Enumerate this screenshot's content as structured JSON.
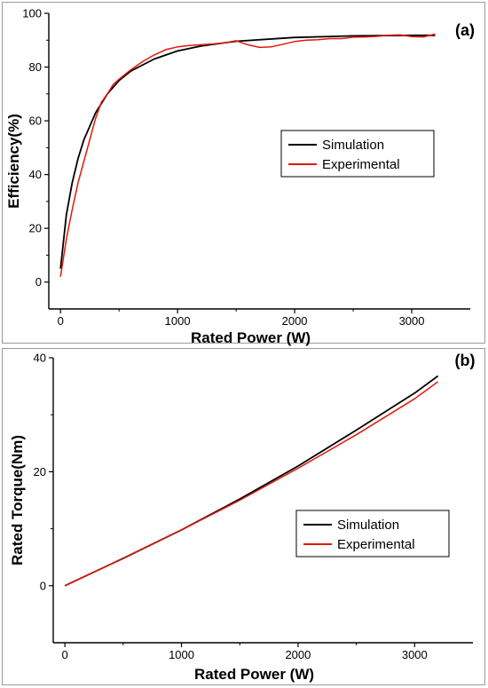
{
  "chart_data": [
    {
      "type": "line",
      "panel_label": "(a)",
      "xlabel": "Rated Power (W)",
      "ylabel": "Efficiency(%)",
      "xlim": [
        -100,
        3500
      ],
      "ylim": [
        -10,
        100
      ],
      "xticks": [
        0,
        1000,
        2000,
        3000
      ],
      "yticks": [
        0,
        20,
        40,
        60,
        80,
        100
      ],
      "legend_position": "center-right",
      "grid": false,
      "series": [
        {
          "name": "Simulation",
          "color": "#000000",
          "x": [
            0,
            50,
            100,
            150,
            200,
            300,
            400,
            500,
            600,
            800,
            1000,
            1200,
            1500,
            2000,
            2500,
            3000,
            3200
          ],
          "y": [
            5,
            25,
            37,
            46,
            53,
            63,
            70,
            75,
            78.5,
            83,
            86,
            87.8,
            89.6,
            91,
            91.6,
            91.8,
            91.8
          ]
        },
        {
          "name": "Experimental",
          "color": "#e3170a",
          "x": [
            0,
            50,
            100,
            150,
            200,
            250,
            300,
            350,
            400,
            450,
            500,
            600,
            700,
            800,
            900,
            1000,
            1100,
            1200,
            1300,
            1400,
            1500,
            1600,
            1700,
            1800,
            1900,
            2000,
            2100,
            2200,
            2300,
            2400,
            2500,
            2600,
            2700,
            2800,
            2900,
            3000,
            3100,
            3200
          ],
          "y": [
            2,
            16,
            27,
            37,
            45,
            53,
            61,
            67,
            70,
            73.5,
            75.5,
            79,
            82,
            84.5,
            86.5,
            87.5,
            88,
            88.3,
            88.6,
            89,
            89.8,
            88.3,
            87.3,
            87.5,
            88.5,
            89.5,
            90,
            90.2,
            90.6,
            90.6,
            91.1,
            91.2,
            91.4,
            91.8,
            92,
            91.3,
            91.2,
            92.3
          ]
        }
      ]
    },
    {
      "type": "line",
      "panel_label": "(b)",
      "xlabel": "Rated Power (W)",
      "ylabel": "Rated Torque(Nm)",
      "xlim": [
        -100,
        3500
      ],
      "ylim": [
        -10,
        40
      ],
      "xticks": [
        0,
        1000,
        2000,
        3000
      ],
      "yticks": [
        0,
        20,
        40
      ],
      "legend_position": "center-right",
      "grid": false,
      "series": [
        {
          "name": "Simulation",
          "color": "#000000",
          "x": [
            0,
            500,
            1000,
            1500,
            2000,
            2500,
            3000,
            3200
          ],
          "y": [
            0,
            4.8,
            9.8,
            15.2,
            21,
            27.3,
            33.8,
            36.8
          ]
        },
        {
          "name": "Experimental",
          "color": "#e3170a",
          "x": [
            0,
            500,
            1000,
            1500,
            2000,
            2500,
            3000,
            3200
          ],
          "y": [
            0,
            4.8,
            9.8,
            15.0,
            20.6,
            26.5,
            32.8,
            35.8
          ]
        }
      ]
    }
  ]
}
